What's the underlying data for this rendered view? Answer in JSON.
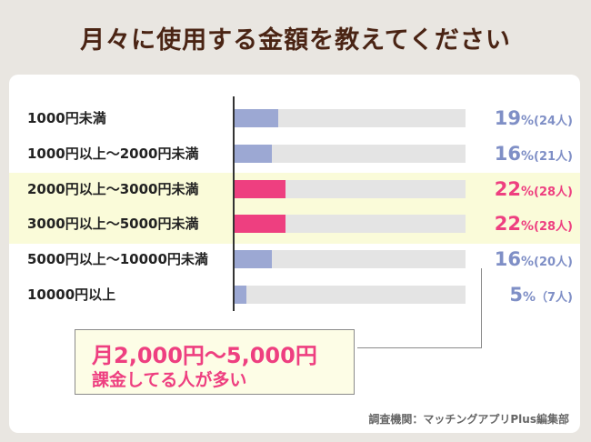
{
  "title": "月々に使用する金額を教えてください",
  "colors": {
    "normal": "#9ca8d3",
    "highlight": "#ee3f80",
    "normal_text": "#7f8fc6",
    "highlight_text": "#ee3f80",
    "track": "#e4e4e4",
    "highlight_band": "#fafbd9"
  },
  "chart_data": {
    "type": "bar",
    "orientation": "horizontal",
    "title": "月々に使用する金額を教えてください",
    "unit": "%",
    "xlim": [
      0,
      100
    ],
    "categories": [
      "1000円未満",
      "1000円以上～2000円未満",
      "2000円以上～3000円未満",
      "3000円以上～5000円未満",
      "5000円以上～10000円未満",
      "10000円以上"
    ],
    "values": [
      19,
      16,
      22,
      22,
      16,
      5
    ],
    "value_labels": [
      "19",
      "16",
      "22",
      "22",
      "16",
      "5"
    ],
    "percent_symbol": "%",
    "counts": [
      "(24人)",
      "(21人)",
      "(28人)",
      "(28人)",
      "(20人)",
      "（7人)"
    ],
    "highlighted": [
      false,
      false,
      true,
      true,
      false,
      false
    ]
  },
  "callout": {
    "line1": "月2,000円～5,000円",
    "line2": "課金してる人が多い"
  },
  "source": "調査機関：マッチングアプリPlus編集部"
}
